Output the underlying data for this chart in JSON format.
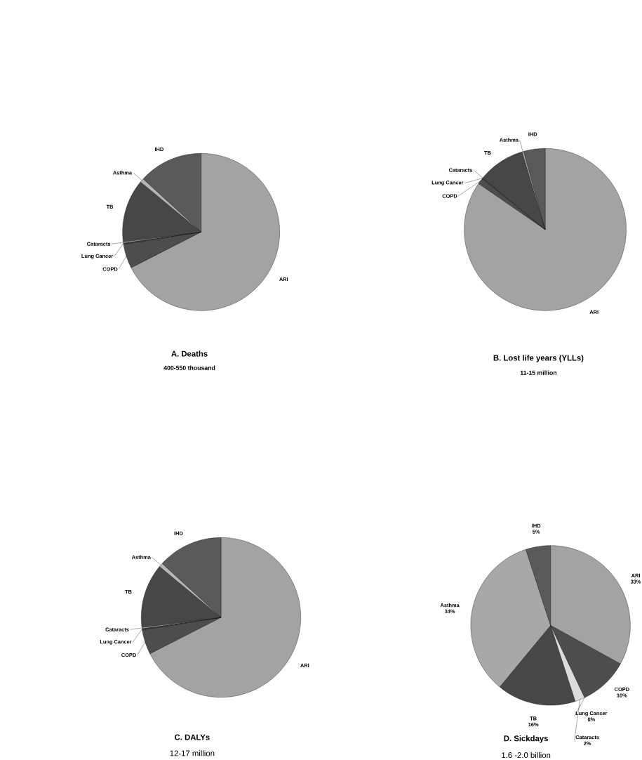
{
  "chart_data": [
    {
      "type": "pie",
      "title": "A. Deaths",
      "subtitle": "400-550 thousand",
      "categories": [
        "ARI",
        "COPD",
        "Lung Cancer",
        "Cataracts",
        "TB",
        "Asthma",
        "IHD"
      ],
      "values": [
        67.5,
        5,
        0.3,
        0.2,
        13,
        0.8,
        13.2
      ],
      "colors": [
        "#a3a3a3",
        "#4d4d4d",
        "#3a3a3a",
        "#d0d0d0",
        "#474747",
        "#b5b5b5",
        "#5a5a5a"
      ]
    },
    {
      "type": "pie",
      "title": "B. Lost life years (YLLs)",
      "subtitle": "11-15 million",
      "categories": [
        "ARI",
        "COPD",
        "Lung Cancer",
        "Cataracts",
        "TB",
        "Asthma",
        "IHD"
      ],
      "values": [
        84.6,
        1.2,
        0.2,
        0,
        9.4,
        0.3,
        4.3
      ],
      "colors": [
        "#a3a3a3",
        "#4d4d4d",
        "#3a3a3a",
        "#d0d0d0",
        "#474747",
        "#b5b5b5",
        "#5a5a5a"
      ]
    },
    {
      "type": "pie",
      "title": "C. DALYs",
      "subtitle": "12-17 million",
      "categories": [
        "ARI",
        "COPD",
        "Lung Cancer",
        "Cataracts",
        "TB",
        "Asthma",
        "IHD"
      ],
      "values": [
        67.5,
        5,
        0.3,
        0.2,
        13,
        0.8,
        13.2
      ],
      "colors": [
        "#a3a3a3",
        "#4d4d4d",
        "#3a3a3a",
        "#d0d0d0",
        "#474747",
        "#b5b5b5",
        "#5a5a5a"
      ]
    },
    {
      "type": "pie",
      "title": "D. Sickdays",
      "subtitle": "1.6 -2.0 billion",
      "categories": [
        "ARI",
        "COPD",
        "Lung Cancer",
        "Cataracts",
        "TB",
        "Asthma",
        "IHD"
      ],
      "values": [
        33,
        10,
        0,
        2,
        16,
        34,
        5
      ],
      "value_labels": [
        "33%",
        "10%",
        "0%",
        "2%",
        "16%",
        "34%",
        "5%"
      ],
      "colors": [
        "#a3a3a3",
        "#4d4d4d",
        "#3a3a3a",
        "#dcdcdc",
        "#474747",
        "#a8a8a8",
        "#5a5a5a"
      ]
    }
  ]
}
